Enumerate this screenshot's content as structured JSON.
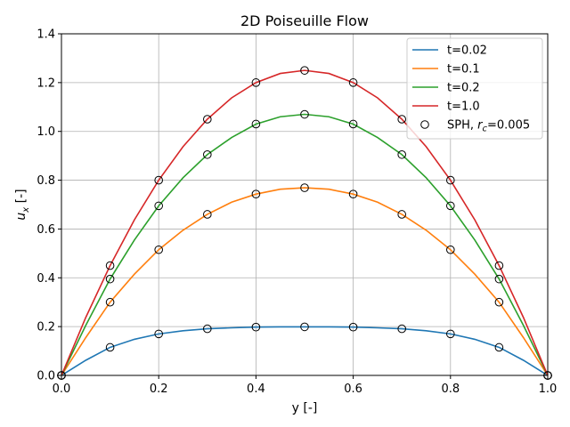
{
  "chart_data": {
    "type": "line",
    "title": "2D Poiseuille Flow",
    "xlabel": "y [-]",
    "ylabel": "u_x [-]",
    "ylabel_main": "u",
    "ylabel_sub": "x",
    "ylabel_unit": " [-]",
    "xlim": [
      0,
      1
    ],
    "ylim": [
      0,
      1.4
    ],
    "xticks": [
      0.0,
      0.2,
      0.4,
      0.6,
      0.8,
      1.0
    ],
    "xtick_labels": [
      "0.0",
      "0.2",
      "0.4",
      "0.6",
      "0.8",
      "1.0"
    ],
    "yticks": [
      0.0,
      0.2,
      0.4,
      0.6,
      0.8,
      1.0,
      1.2,
      1.4
    ],
    "ytick_labels": [
      "0.0",
      "0.2",
      "0.4",
      "0.6",
      "0.8",
      "1.0",
      "1.2",
      "1.4"
    ],
    "grid": true,
    "legend_position": "top-right",
    "series": [
      {
        "name": "t=0.02",
        "color": "#1f77b4",
        "x": [
          0.0,
          0.02,
          0.05,
          0.1,
          0.15,
          0.2,
          0.25,
          0.3,
          0.35,
          0.4,
          0.45,
          0.5,
          0.55,
          0.6,
          0.65,
          0.7,
          0.75,
          0.8,
          0.85,
          0.9,
          0.95,
          0.98,
          1.0
        ],
        "y": [
          0.0,
          0.025,
          0.062,
          0.115,
          0.148,
          0.17,
          0.183,
          0.191,
          0.195,
          0.198,
          0.199,
          0.199,
          0.199,
          0.198,
          0.195,
          0.191,
          0.183,
          0.17,
          0.148,
          0.115,
          0.062,
          0.025,
          0.0
        ]
      },
      {
        "name": "t=0.1",
        "color": "#ff7f0e",
        "x": [
          0.0,
          0.05,
          0.1,
          0.15,
          0.2,
          0.25,
          0.3,
          0.35,
          0.4,
          0.45,
          0.5,
          0.55,
          0.6,
          0.65,
          0.7,
          0.75,
          0.8,
          0.85,
          0.9,
          0.95,
          1.0
        ],
        "y": [
          0.0,
          0.155,
          0.3,
          0.415,
          0.515,
          0.595,
          0.66,
          0.71,
          0.743,
          0.763,
          0.769,
          0.763,
          0.743,
          0.71,
          0.66,
          0.595,
          0.515,
          0.415,
          0.3,
          0.155,
          0.0
        ]
      },
      {
        "name": "t=0.2",
        "color": "#2ca02c",
        "x": [
          0.0,
          0.05,
          0.1,
          0.15,
          0.2,
          0.25,
          0.3,
          0.35,
          0.4,
          0.45,
          0.5,
          0.55,
          0.6,
          0.65,
          0.7,
          0.75,
          0.8,
          0.85,
          0.9,
          0.95,
          1.0
        ],
        "y": [
          0.0,
          0.205,
          0.395,
          0.555,
          0.695,
          0.81,
          0.905,
          0.975,
          1.03,
          1.06,
          1.07,
          1.06,
          1.03,
          0.975,
          0.905,
          0.81,
          0.695,
          0.555,
          0.395,
          0.205,
          0.0
        ]
      },
      {
        "name": "t=1.0",
        "color": "#d62728",
        "x": [
          0.0,
          0.05,
          0.1,
          0.15,
          0.2,
          0.25,
          0.3,
          0.35,
          0.4,
          0.45,
          0.5,
          0.55,
          0.6,
          0.65,
          0.7,
          0.75,
          0.8,
          0.85,
          0.9,
          0.95,
          1.0
        ],
        "y": [
          0.0,
          0.2375,
          0.45,
          0.6375,
          0.8,
          0.9375,
          1.05,
          1.1375,
          1.2,
          1.2375,
          1.25,
          1.2375,
          1.2,
          1.1375,
          1.05,
          0.9375,
          0.8,
          0.6375,
          0.45,
          0.2375,
          0.0
        ]
      }
    ],
    "markers": {
      "name_prefix": "SPH, ",
      "name_var": "r",
      "name_sub": "c",
      "name_suffix": "=0.005",
      "x": [
        0.0,
        0.1,
        0.2,
        0.3,
        0.4,
        0.5,
        0.6,
        0.7,
        0.8,
        0.9,
        1.0
      ],
      "sets": [
        [
          0.0,
          0.115,
          0.17,
          0.191,
          0.198,
          0.199,
          0.198,
          0.191,
          0.17,
          0.115,
          0.0
        ],
        [
          0.0,
          0.3,
          0.515,
          0.66,
          0.743,
          0.769,
          0.743,
          0.66,
          0.515,
          0.3,
          0.0
        ],
        [
          0.0,
          0.395,
          0.695,
          0.905,
          1.03,
          1.07,
          1.03,
          0.905,
          0.695,
          0.395,
          0.0
        ],
        [
          0.0,
          0.45,
          0.8,
          1.05,
          1.2,
          1.25,
          1.2,
          1.05,
          0.8,
          0.45,
          0.0
        ]
      ]
    }
  }
}
